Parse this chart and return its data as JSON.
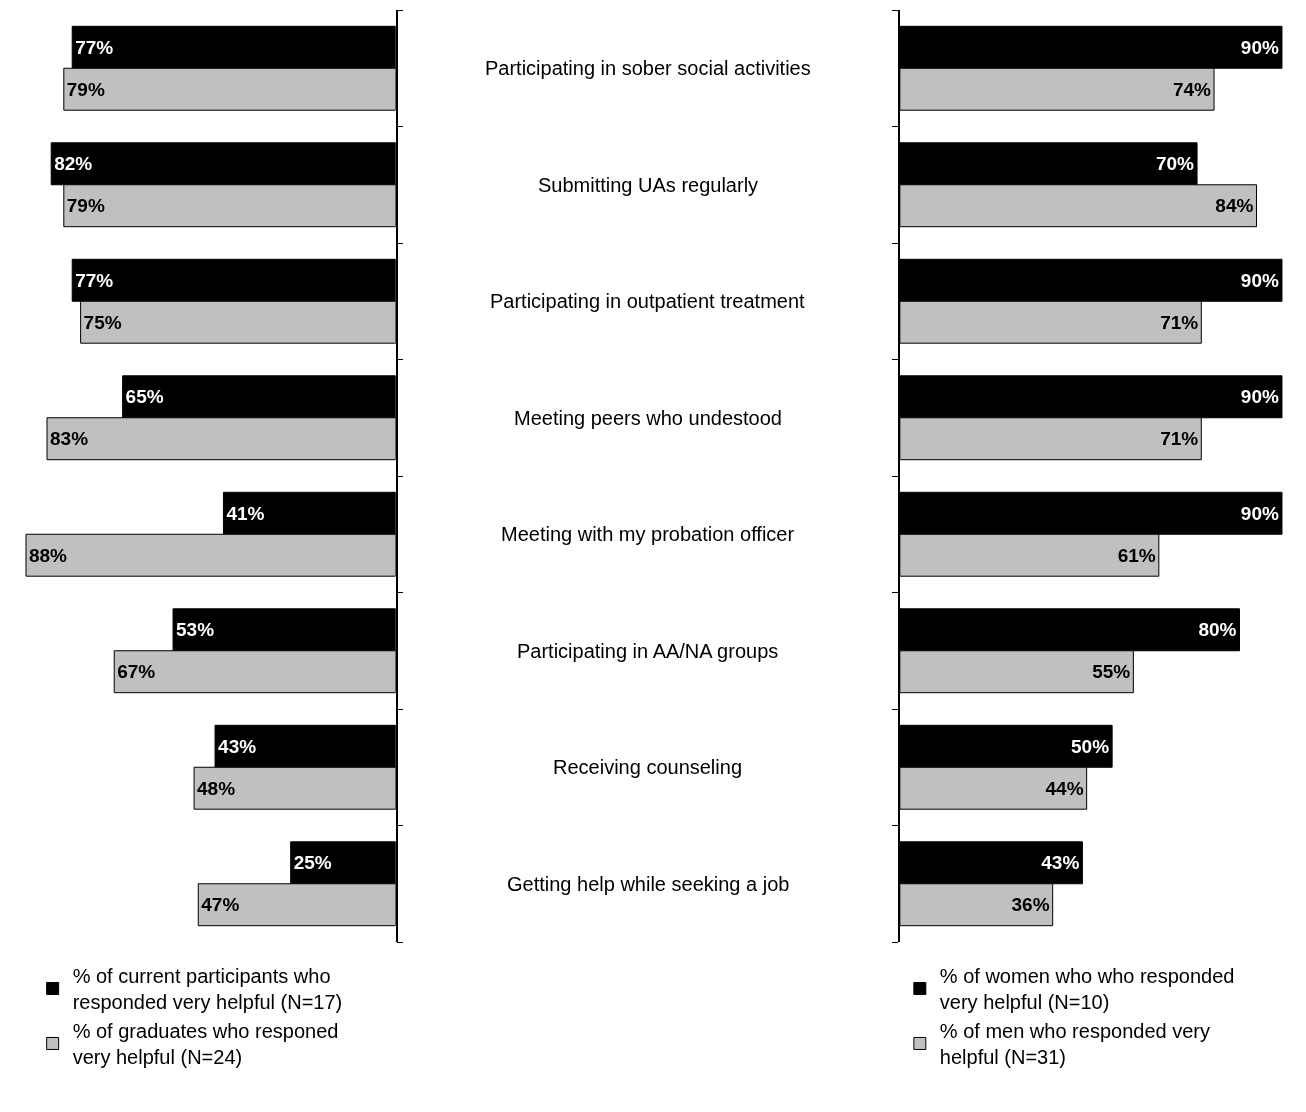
{
  "chart_data": [
    {
      "type": "bar",
      "orientation": "horizontal",
      "categories": [
        "Participating in sober social activities",
        "Submitting UAs regularly",
        "Participating in outpatient treatment",
        "Meeting peers who undestood",
        "Meeting with my probation officer",
        "Participating in AA/NA groups",
        "Receiving counseling",
        "Getting help while seeking a job"
      ],
      "series": [
        {
          "name": "% of current participants who responded very helpful (N=17)",
          "color": "#000000",
          "values": [
            77,
            82,
            77,
            65,
            41,
            53,
            43,
            25
          ],
          "value_labels": [
            "77%",
            "82%",
            "77%",
            "65%",
            "41%",
            "53%",
            "43%",
            "25%"
          ]
        },
        {
          "name": "% of graduates who responed very helpful (N=24)",
          "color": "#c0c0c0",
          "values": [
            79,
            79,
            75,
            83,
            88,
            67,
            48,
            47
          ],
          "value_labels": [
            "79%",
            "79%",
            "75%",
            "83%",
            "88%",
            "67%",
            "48%",
            "47%"
          ]
        }
      ],
      "tick_labels": "y",
      "legend": "bottom"
    },
    {
      "type": "bar",
      "orientation": "horizontal",
      "series": [
        {
          "name": "% of women who who responded very helpful (N=10)",
          "color": "#000000",
          "values": [
            90,
            70,
            90,
            90,
            90,
            80,
            50,
            43
          ],
          "value_labels": [
            "90%",
            "70%",
            "90%",
            "90%",
            "90%",
            "80%",
            "50%",
            "43%"
          ]
        },
        {
          "name": "% of men who responded very helpful (N=31)",
          "color": "#c0c0c0",
          "values": [
            74,
            84,
            71,
            71,
            61,
            55,
            44,
            36
          ],
          "value_labels": [
            "74%",
            "84%",
            "71%",
            "71%",
            "61%",
            "55%",
            "44%",
            "36%"
          ]
        }
      ],
      "tick_labels": false,
      "legend": "bottom"
    }
  ]
}
